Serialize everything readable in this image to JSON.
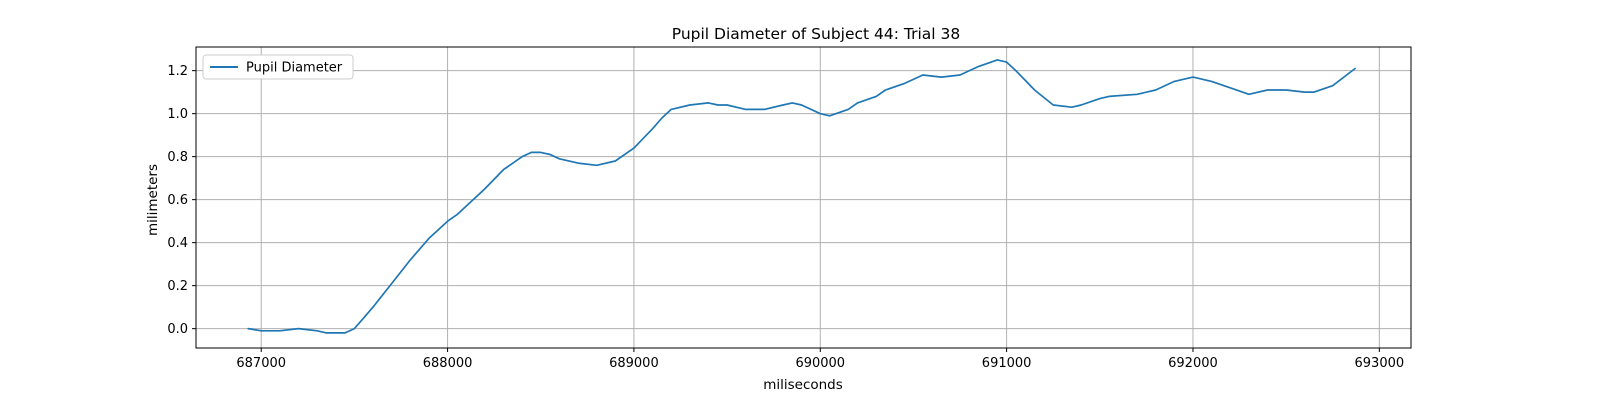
{
  "chart_data": {
    "type": "line",
    "title": "Pupil Diameter of Subject 44: Trial 38",
    "xlabel": "miliseconds",
    "ylabel": "milimeters",
    "xlim": [
      686650,
      693170
    ],
    "ylim": [
      -0.09,
      1.31
    ],
    "xticks": [
      687000,
      688000,
      689000,
      690000,
      691000,
      692000,
      693000
    ],
    "yticks": [
      0.0,
      0.2,
      0.4,
      0.6,
      0.8,
      1.0,
      1.2
    ],
    "xtick_labels": [
      "687000",
      "688000",
      "689000",
      "690000",
      "691000",
      "692000",
      "693000"
    ],
    "ytick_labels": [
      "0.0",
      "0.2",
      "0.4",
      "0.6",
      "0.8",
      "1.0",
      "1.2"
    ],
    "grid": true,
    "legend": {
      "position": "top-left",
      "entries": [
        "Pupil Diameter"
      ]
    },
    "line_color": "#1f77b4",
    "series": [
      {
        "name": "Pupil Diameter",
        "x": [
          686930,
          687000,
          687100,
          687200,
          687300,
          687350,
          687450,
          687500,
          687550,
          687600,
          687700,
          687800,
          687900,
          688000,
          688050,
          688100,
          688200,
          688300,
          688400,
          688450,
          688500,
          688550,
          688600,
          688700,
          688800,
          688900,
          689000,
          689100,
          689150,
          689200,
          689300,
          689400,
          689450,
          689500,
          689600,
          689700,
          689800,
          689850,
          689900,
          690000,
          690050,
          690150,
          690200,
          690300,
          690350,
          690450,
          690550,
          690650,
          690750,
          690850,
          690950,
          691000,
          691050,
          691150,
          691250,
          691350,
          691400,
          691500,
          691550,
          691700,
          691800,
          691900,
          692000,
          692100,
          692200,
          692300,
          692400,
          692500,
          692600,
          692650,
          692750,
          692870
        ],
        "y": [
          0.0,
          -0.01,
          -0.01,
          0.0,
          -0.01,
          -0.02,
          -0.02,
          0.0,
          0.05,
          0.1,
          0.21,
          0.32,
          0.42,
          0.5,
          0.53,
          0.57,
          0.65,
          0.74,
          0.8,
          0.82,
          0.82,
          0.81,
          0.79,
          0.77,
          0.76,
          0.78,
          0.84,
          0.93,
          0.98,
          1.02,
          1.04,
          1.05,
          1.04,
          1.04,
          1.02,
          1.02,
          1.04,
          1.05,
          1.04,
          1.0,
          0.99,
          1.02,
          1.05,
          1.08,
          1.11,
          1.14,
          1.18,
          1.17,
          1.18,
          1.22,
          1.25,
          1.24,
          1.2,
          1.11,
          1.04,
          1.03,
          1.04,
          1.07,
          1.08,
          1.09,
          1.11,
          1.15,
          1.17,
          1.15,
          1.12,
          1.09,
          1.11,
          1.11,
          1.1,
          1.1,
          1.13,
          1.21
        ]
      }
    ]
  }
}
